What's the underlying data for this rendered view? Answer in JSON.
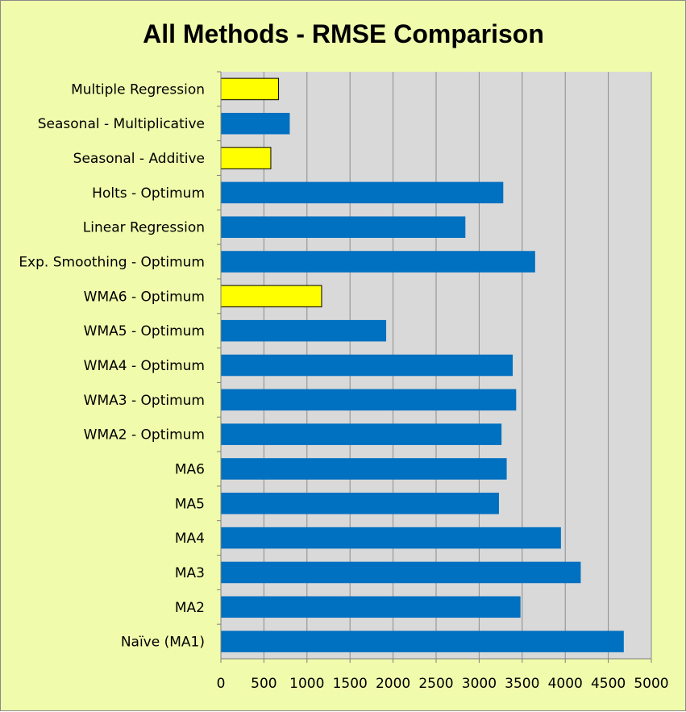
{
  "chart_data": {
    "type": "bar",
    "orientation": "horizontal",
    "title": "All Methods - RMSE Comparison",
    "xlabel": "",
    "ylabel": "",
    "xlim": [
      0,
      5000
    ],
    "x_ticks": [
      "0",
      "500",
      "1000",
      "1500",
      "2000",
      "2500",
      "3000",
      "3500",
      "4000",
      "4500",
      "5000"
    ],
    "grid": "vertical",
    "legend": "none",
    "colors": {
      "default_bar": "#0070c0",
      "highlight_bar": "#ffff00",
      "highlight_border": "#000000",
      "plot_background": "#d9d9d9",
      "chart_background": "#f0fbac"
    },
    "categories": [
      "Multiple Regression",
      "Seasonal - Multiplicative",
      "Seasonal - Additive",
      "Holts - Optimum",
      "Linear Regression",
      "Exp. Smoothing - Optimum",
      "WMA6 - Optimum",
      "WMA5 - Optimum",
      "WMA4 - Optimum",
      "WMA3 - Optimum",
      "WMA2 - Optimum",
      "MA6",
      "MA5",
      "MA4",
      "MA3",
      "MA2",
      "Naïve (MA1)"
    ],
    "values": [
      670,
      800,
      580,
      3280,
      2840,
      3650,
      1170,
      1920,
      3390,
      3430,
      3260,
      3320,
      3230,
      3950,
      4180,
      3480,
      4680
    ],
    "highlighted": [
      true,
      false,
      true,
      false,
      false,
      false,
      true,
      false,
      false,
      false,
      false,
      false,
      false,
      false,
      false,
      false,
      false
    ]
  }
}
